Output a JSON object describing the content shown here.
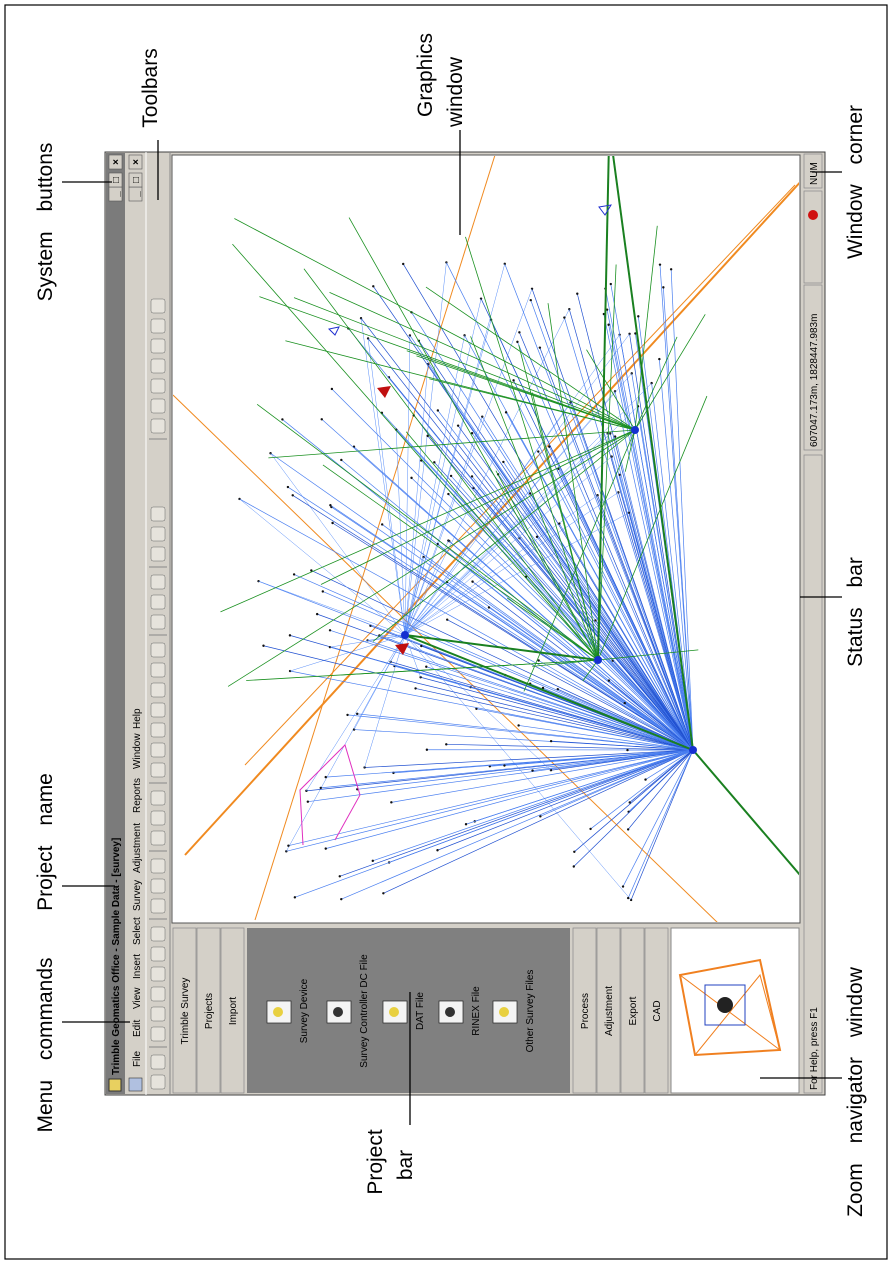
{
  "callouts": {
    "system_buttons": "System buttons",
    "toolbars": "Toolbars",
    "graphics_window": [
      "Graphics",
      "window"
    ],
    "window_corner": "Window corner",
    "project_name": "Project name",
    "menu_commands": "Menu commands",
    "project_bar": [
      "Project",
      "bar"
    ],
    "status_bar": "Status bar",
    "zoom_navigator": "Zoom navigator window"
  },
  "window": {
    "title": "Trimble Geomatics Office - Sample Data - [survey]",
    "menu": [
      "File",
      "Edit",
      "View",
      "Insert",
      "Select",
      "Survey",
      "Adjustment",
      "Reports",
      "Window",
      "Help"
    ],
    "project_bar": {
      "top_groups": [
        "Trimble Survey",
        "Projects",
        "Import"
      ],
      "import_items": [
        "Survey Device",
        "Survey Controller DC File",
        "DAT File",
        "RINEX File",
        "Other Survey Files"
      ],
      "bottom_groups": [
        "Process",
        "Adjustment",
        "Export",
        "CAD"
      ]
    },
    "status_bar": {
      "help": "For Help, press F1",
      "coordinates": "607047.173m, 1828447.983m",
      "mode": "NUM"
    }
  }
}
